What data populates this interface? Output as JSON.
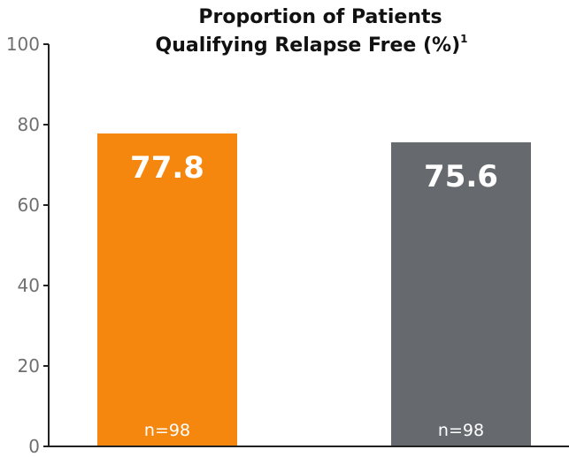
{
  "chart_data": {
    "type": "bar",
    "title_lines": [
      "Proportion of Patients",
      "Qualifying Relapse Free (%)"
    ],
    "title_superscript": "1",
    "xlabel": "",
    "ylabel": "",
    "ylim": [
      0,
      100
    ],
    "yticks": [
      0,
      20,
      40,
      60,
      80,
      100
    ],
    "grid": false,
    "legend": "none",
    "categories": [
      "",
      ""
    ],
    "values": [
      77.8,
      75.6
    ],
    "value_labels": [
      "77.8",
      "75.6"
    ],
    "n_labels": [
      "n=98",
      "n=98"
    ],
    "colors": [
      "#f5870f",
      "#666a6e"
    ]
  }
}
